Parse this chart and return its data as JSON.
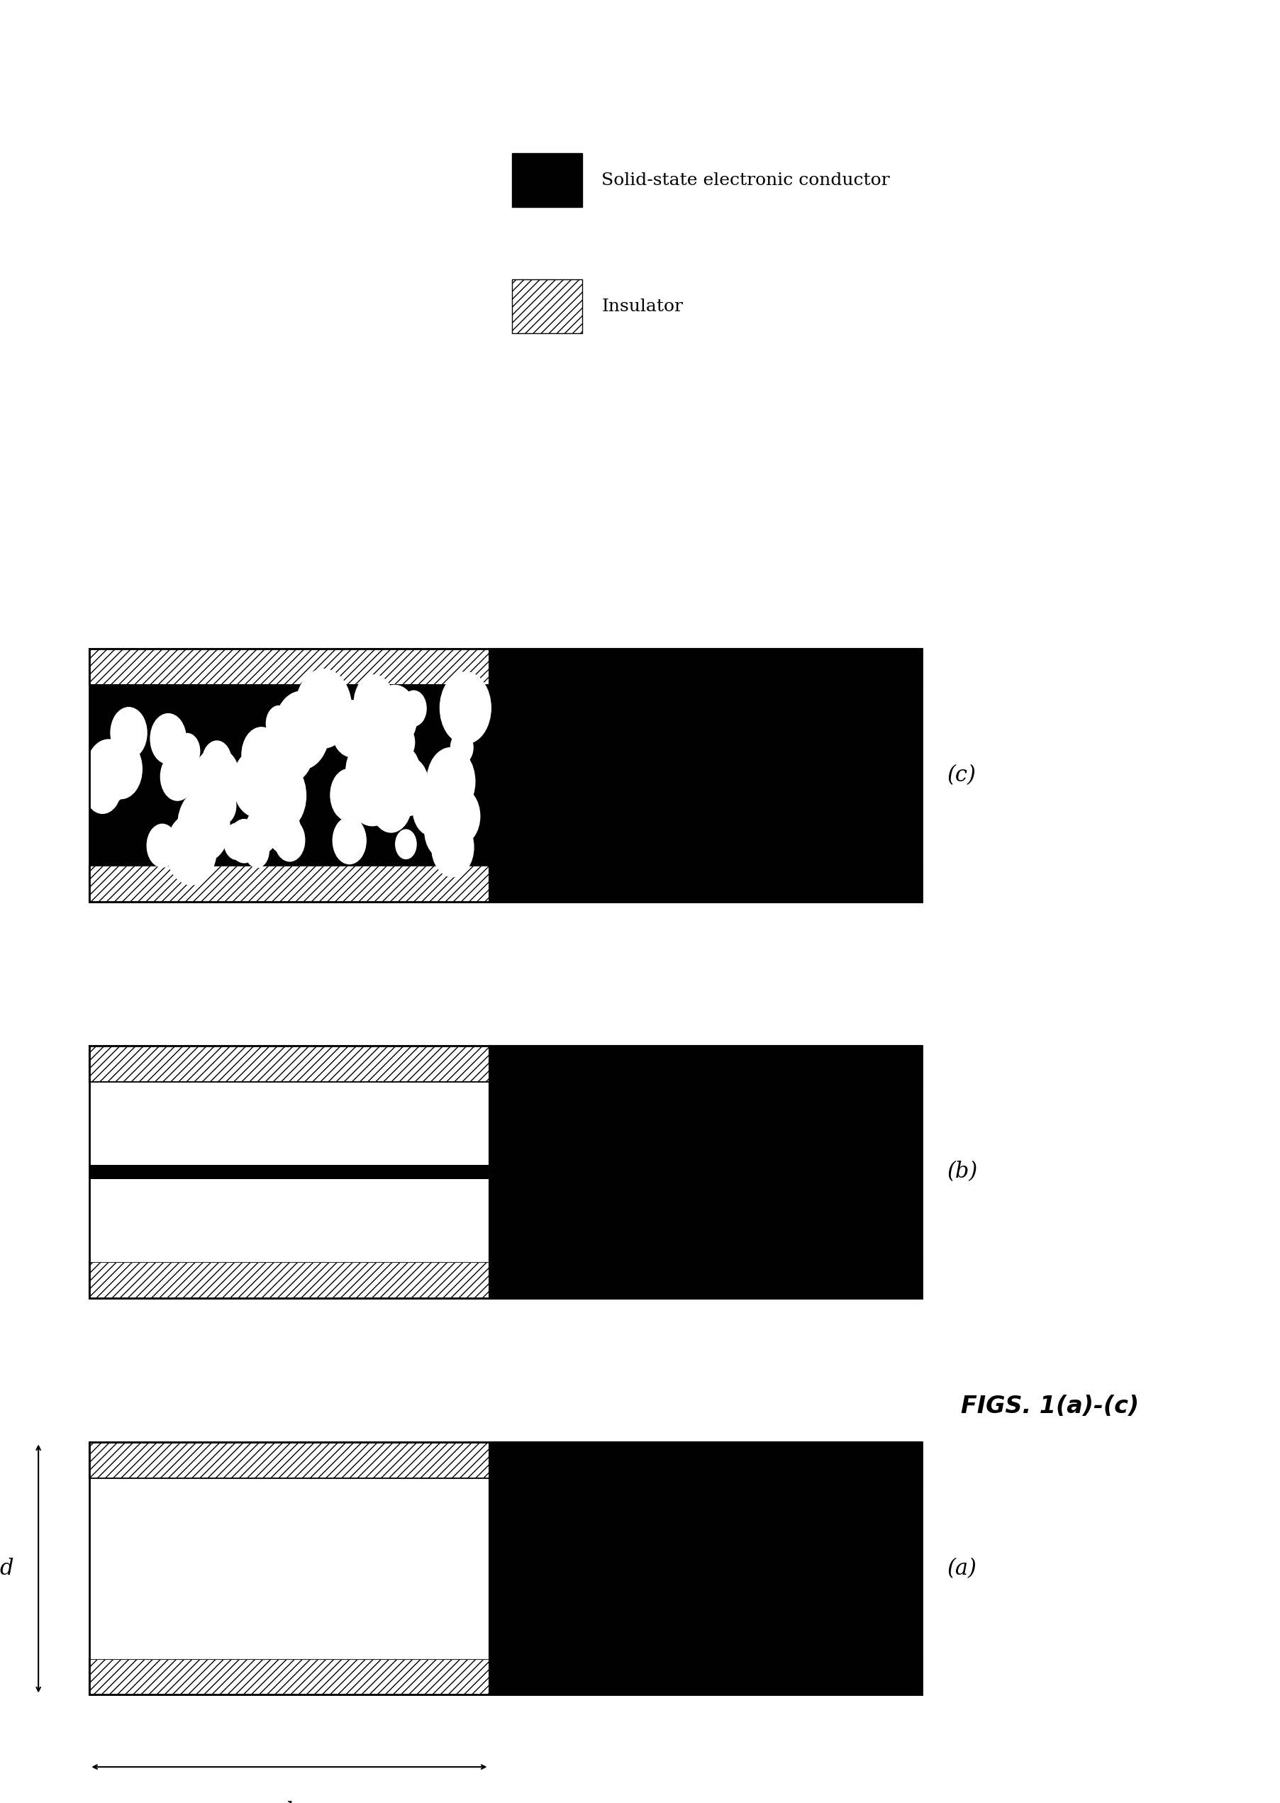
{
  "bg_color": "#ffffff",
  "fig_width": 18.05,
  "fig_height": 25.43,
  "legend_label1": "Solid-state electronic conductor",
  "legend_label2": "Insulator",
  "fig_label": "FIGS. 1(a)-(c)",
  "label_a": "(a)",
  "label_b": "(b)",
  "label_c": "(c)",
  "label_d": "d",
  "label_l": "l",
  "hatch_color": "#000000",
  "black_color": "#000000",
  "white_color": "#ffffff"
}
